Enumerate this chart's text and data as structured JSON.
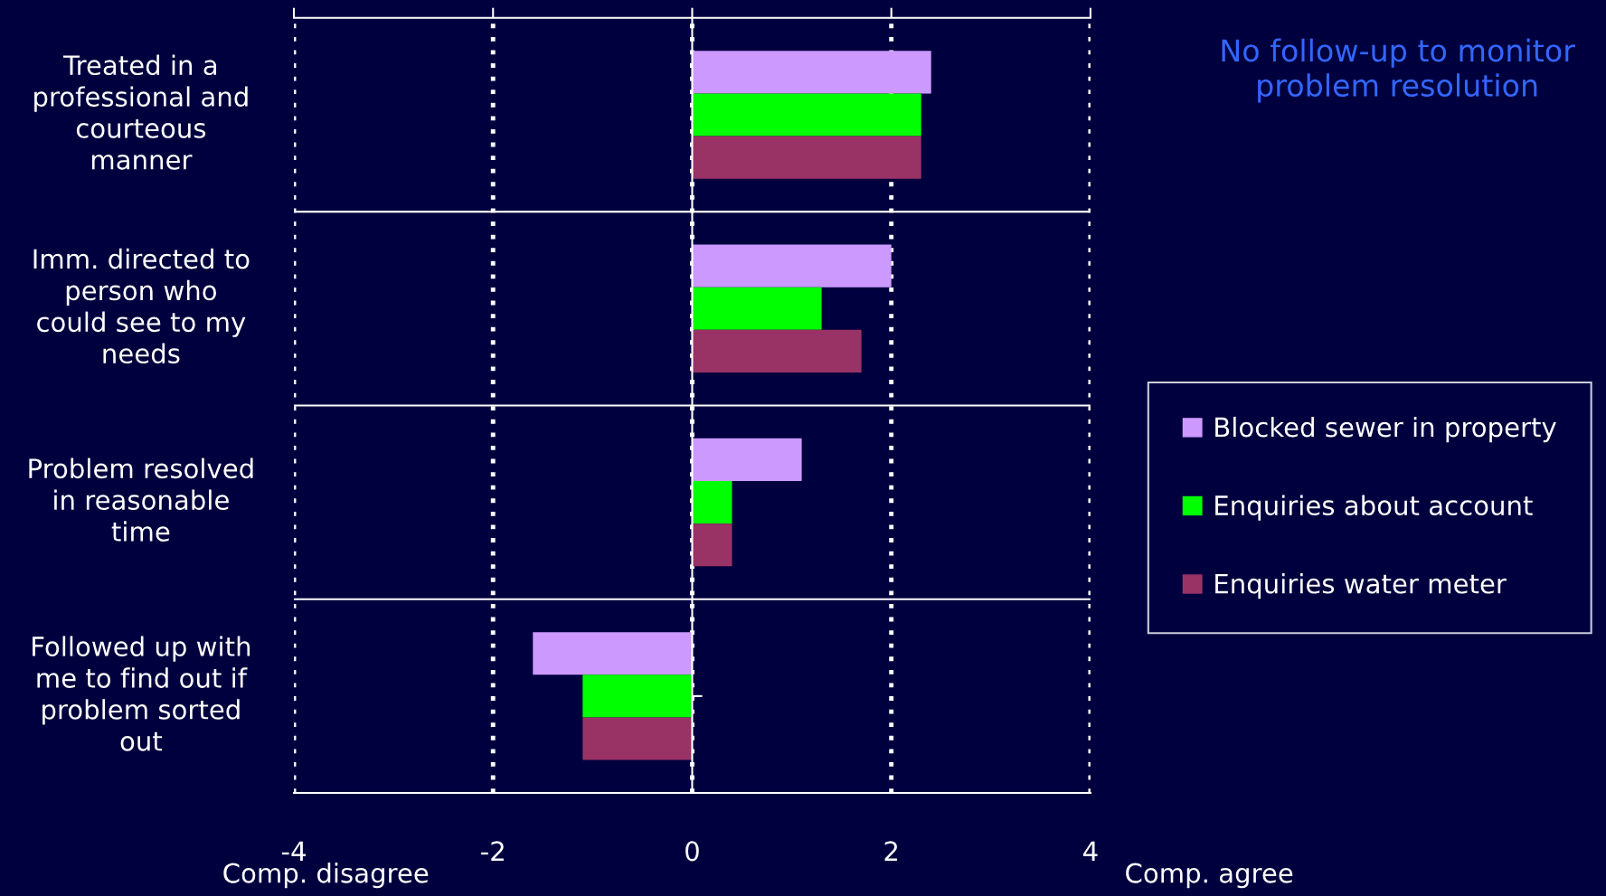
{
  "chart_data": {
    "type": "bar",
    "orientation": "horizontal",
    "title": "No follow-up to monitor\nproblem resolution",
    "categories": [
      "Treated in a\nprofessional and\ncourteous\nmanner",
      "Imm. directed to\nperson who\ncould see to my\nneeds",
      "Problem resolved\nin reasonable\ntime",
      "Followed up with\nme to find out if\nproblem sorted\nout"
    ],
    "series": [
      {
        "name": "Blocked sewer in property",
        "color": "#cc99ff",
        "values": [
          2.4,
          2.0,
          1.1,
          -1.6
        ]
      },
      {
        "name": "Enquiries about account",
        "color": "#00ff00",
        "values": [
          2.3,
          1.3,
          0.4,
          -1.1
        ]
      },
      {
        "name": "Enquiries water meter",
        "color": "#993366",
        "values": [
          2.3,
          1.7,
          0.4,
          -1.1
        ]
      }
    ],
    "xlim": [
      -4,
      4
    ],
    "xticks": [
      -4,
      -2,
      0,
      2,
      4
    ],
    "grid": true,
    "legend": "right",
    "annotations": [
      "Comp. disagree",
      "Comp. agree"
    ]
  }
}
